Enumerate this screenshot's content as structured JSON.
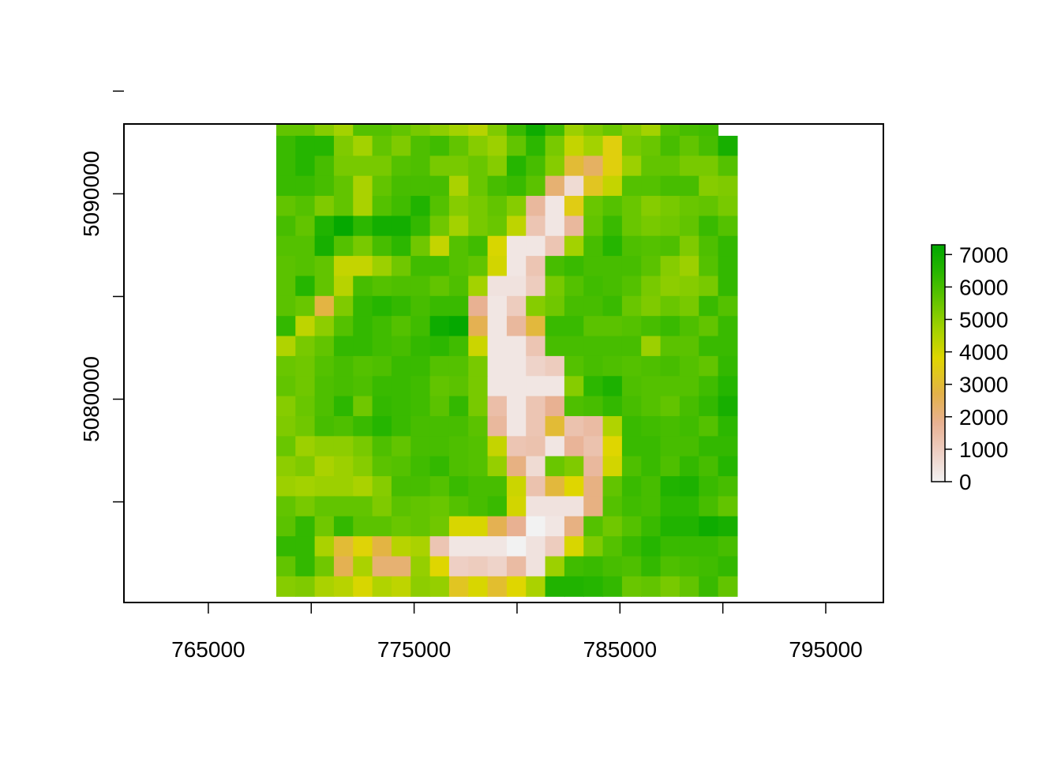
{
  "chart_data": {
    "type": "heatmap",
    "title": "",
    "xlabel": "",
    "ylabel": "",
    "x_ticks": [
      765000,
      770000,
      775000,
      780000,
      785000,
      790000,
      795000
    ],
    "x_tick_labels": [
      "765000",
      "775000",
      "785000",
      "795000"
    ],
    "y_ticks": [
      5075000,
      5080000,
      5085000,
      5090000,
      5095000
    ],
    "y_tick_labels": [
      "5080000",
      "5090000"
    ],
    "xlim": [
      760900,
      797800
    ],
    "ylim": [
      5070100,
      5093400
    ],
    "raster_extent": {
      "xmin": 768300,
      "xmax": 790700,
      "ymin": 5070400,
      "ymax": 5093800
    },
    "cell_size": 933,
    "ncols": 24,
    "nrows": 24,
    "legend": {
      "position": "right",
      "ticks": [
        0,
        1000,
        2000,
        3000,
        4000,
        5000,
        6000,
        7000
      ],
      "tick_labels": [
        "0",
        "1000",
        "2000",
        "3000",
        "4000",
        "5000",
        "6000",
        "7000"
      ],
      "range": [
        0,
        7300
      ]
    },
    "colors": {
      "stops": [
        "#f2f2f2",
        "#eecfc4",
        "#e8b192",
        "#e3b14a",
        "#dfd600",
        "#a3d200",
        "#62c400",
        "#25b500",
        "#00a600"
      ],
      "stop_values": [
        0,
        900,
        1800,
        2700,
        3800,
        4700,
        5600,
        6500,
        7300
      ]
    },
    "values": [
      [
        5600,
        5600,
        5100,
        4700,
        5800,
        5800,
        5600,
        5300,
        5000,
        4700,
        4400,
        5200,
        6200,
        7000,
        6100,
        4800,
        5200,
        5500,
        5100,
        4700,
        5800,
        6000,
        6100,
        null
      ],
      [
        6200,
        6500,
        6500,
        5200,
        4700,
        5600,
        5200,
        5900,
        6100,
        5600,
        5100,
        4800,
        5600,
        6400,
        5300,
        4200,
        4700,
        3600,
        5300,
        5500,
        6000,
        5600,
        6000,
        6800
      ],
      [
        6200,
        6500,
        6000,
        5300,
        5300,
        5300,
        5800,
        5900,
        5300,
        5300,
        5500,
        5100,
        6500,
        6000,
        5100,
        3000,
        2400,
        3600,
        4800,
        5600,
        5600,
        5300,
        5300,
        5800
      ],
      [
        6200,
        6200,
        6000,
        5600,
        4600,
        5600,
        6000,
        6000,
        6000,
        4600,
        5500,
        6000,
        6200,
        5700,
        2200,
        600,
        3300,
        4200,
        5800,
        5800,
        6000,
        6000,
        5100,
        5200
      ],
      [
        5600,
        5800,
        5200,
        5600,
        4600,
        5800,
        6100,
        6600,
        5800,
        5100,
        5300,
        5600,
        5100,
        1600,
        300,
        3500,
        5500,
        5800,
        5500,
        5100,
        5300,
        5500,
        5600,
        5300
      ],
      [
        6000,
        5600,
        6600,
        7200,
        6400,
        6900,
        6900,
        6300,
        5400,
        4700,
        5300,
        5500,
        4300,
        1200,
        300,
        1600,
        5600,
        6200,
        5500,
        5300,
        5400,
        5600,
        6200,
        5800
      ],
      [
        5800,
        5800,
        6800,
        5800,
        5300,
        6000,
        6400,
        5400,
        4200,
        5800,
        6100,
        3900,
        300,
        300,
        1200,
        4700,
        6000,
        6500,
        5900,
        5800,
        5900,
        5200,
        5900,
        6300
      ],
      [
        5700,
        5800,
        5600,
        4200,
        4200,
        4800,
        5400,
        6100,
        6100,
        5800,
        5600,
        4000,
        300,
        1200,
        6000,
        6200,
        6000,
        6000,
        6000,
        5700,
        5100,
        4800,
        5800,
        6300
      ],
      [
        5700,
        6500,
        5600,
        4400,
        6000,
        5800,
        5900,
        5900,
        5600,
        5900,
        4700,
        400,
        400,
        1000,
        5300,
        5800,
        6100,
        6000,
        5800,
        5300,
        5000,
        5100,
        5300,
        6300
      ],
      [
        5700,
        5500,
        2800,
        5200,
        6300,
        6500,
        6300,
        6000,
        6200,
        6200,
        1800,
        300,
        1000,
        5100,
        5400,
        6000,
        6000,
        6200,
        5500,
        5200,
        5500,
        5300,
        6200,
        5800
      ],
      [
        6300,
        4300,
        5000,
        5800,
        6300,
        6100,
        5800,
        6100,
        7000,
        7200,
        2600,
        300,
        1600,
        2900,
        6200,
        6200,
        5700,
        5700,
        5800,
        6000,
        6200,
        5900,
        5600,
        6200
      ],
      [
        4500,
        5300,
        5600,
        6300,
        6300,
        6100,
        6000,
        6300,
        6400,
        6100,
        4100,
        300,
        300,
        1200,
        6000,
        6000,
        6000,
        6000,
        6000,
        4800,
        5700,
        5700,
        6200,
        6200
      ],
      [
        5500,
        5400,
        5800,
        6000,
        5800,
        5900,
        6200,
        6200,
        5800,
        5800,
        5300,
        300,
        300,
        800,
        1000,
        5800,
        6000,
        5900,
        5800,
        5900,
        6000,
        5800,
        5600,
        6300
      ],
      [
        5600,
        5400,
        5900,
        6000,
        5900,
        6200,
        6200,
        6100,
        5600,
        5700,
        5300,
        300,
        300,
        300,
        300,
        5100,
        6400,
        6700,
        5900,
        5800,
        5800,
        5800,
        6100,
        6500
      ],
      [
        5100,
        5500,
        5900,
        6400,
        5400,
        6300,
        6200,
        6100,
        5700,
        6300,
        5300,
        1400,
        300,
        1200,
        1800,
        5900,
        6000,
        6300,
        6000,
        5800,
        5600,
        6000,
        6300,
        6800
      ],
      [
        5200,
        5400,
        6000,
        5900,
        6200,
        6500,
        6200,
        6000,
        6000,
        6000,
        5700,
        1600,
        300,
        1200,
        3000,
        1300,
        1500,
        4500,
        6200,
        6100,
        6000,
        6100,
        5800,
        6400
      ],
      [
        5500,
        4800,
        5000,
        5000,
        5300,
        5900,
        5600,
        6000,
        6000,
        5900,
        5800,
        4200,
        1200,
        1300,
        300,
        1700,
        1300,
        3800,
        6200,
        6200,
        6000,
        6000,
        6300,
        6300
      ],
      [
        5000,
        5200,
        4600,
        4800,
        5100,
        5700,
        5800,
        6100,
        6300,
        5900,
        5800,
        4900,
        2000,
        600,
        5500,
        5200,
        1600,
        4000,
        5900,
        6200,
        5900,
        6300,
        6000,
        6500
      ],
      [
        4800,
        4700,
        4800,
        4800,
        4600,
        5100,
        6000,
        6000,
        5800,
        6200,
        6000,
        6000,
        4100,
        1300,
        2900,
        3800,
        2000,
        5600,
        6200,
        6000,
        6600,
        6700,
        6200,
        6000
      ],
      [
        5600,
        5300,
        5600,
        5600,
        5600,
        5200,
        5700,
        5600,
        5500,
        5800,
        6000,
        6200,
        4000,
        400,
        400,
        400,
        2000,
        5800,
        6100,
        6000,
        6400,
        6400,
        6000,
        5600
      ],
      [
        5700,
        6300,
        5400,
        6300,
        5700,
        5700,
        5500,
        5600,
        5400,
        3900,
        3900,
        2600,
        1800,
        0,
        300,
        2000,
        5800,
        5400,
        5800,
        6200,
        6600,
        6600,
        7000,
        6800
      ],
      [
        6300,
        6300,
        4600,
        3000,
        3700,
        2800,
        4400,
        4600,
        1200,
        300,
        300,
        300,
        0,
        400,
        1000,
        3900,
        5200,
        5800,
        6200,
        6500,
        6200,
        6200,
        6200,
        6000
      ],
      [
        5600,
        6300,
        5400,
        2600,
        4600,
        2200,
        2200,
        4900,
        3800,
        900,
        1000,
        800,
        1500,
        400,
        4800,
        6100,
        6200,
        6000,
        5900,
        6300,
        5900,
        6000,
        6100,
        6300
      ],
      [
        5100,
        5200,
        4600,
        4400,
        3900,
        4500,
        4300,
        5000,
        4900,
        3300,
        3900,
        3100,
        3800,
        4600,
        6600,
        6600,
        6500,
        6300,
        5500,
        5600,
        5300,
        5600,
        6200,
        5600
      ]
    ]
  }
}
